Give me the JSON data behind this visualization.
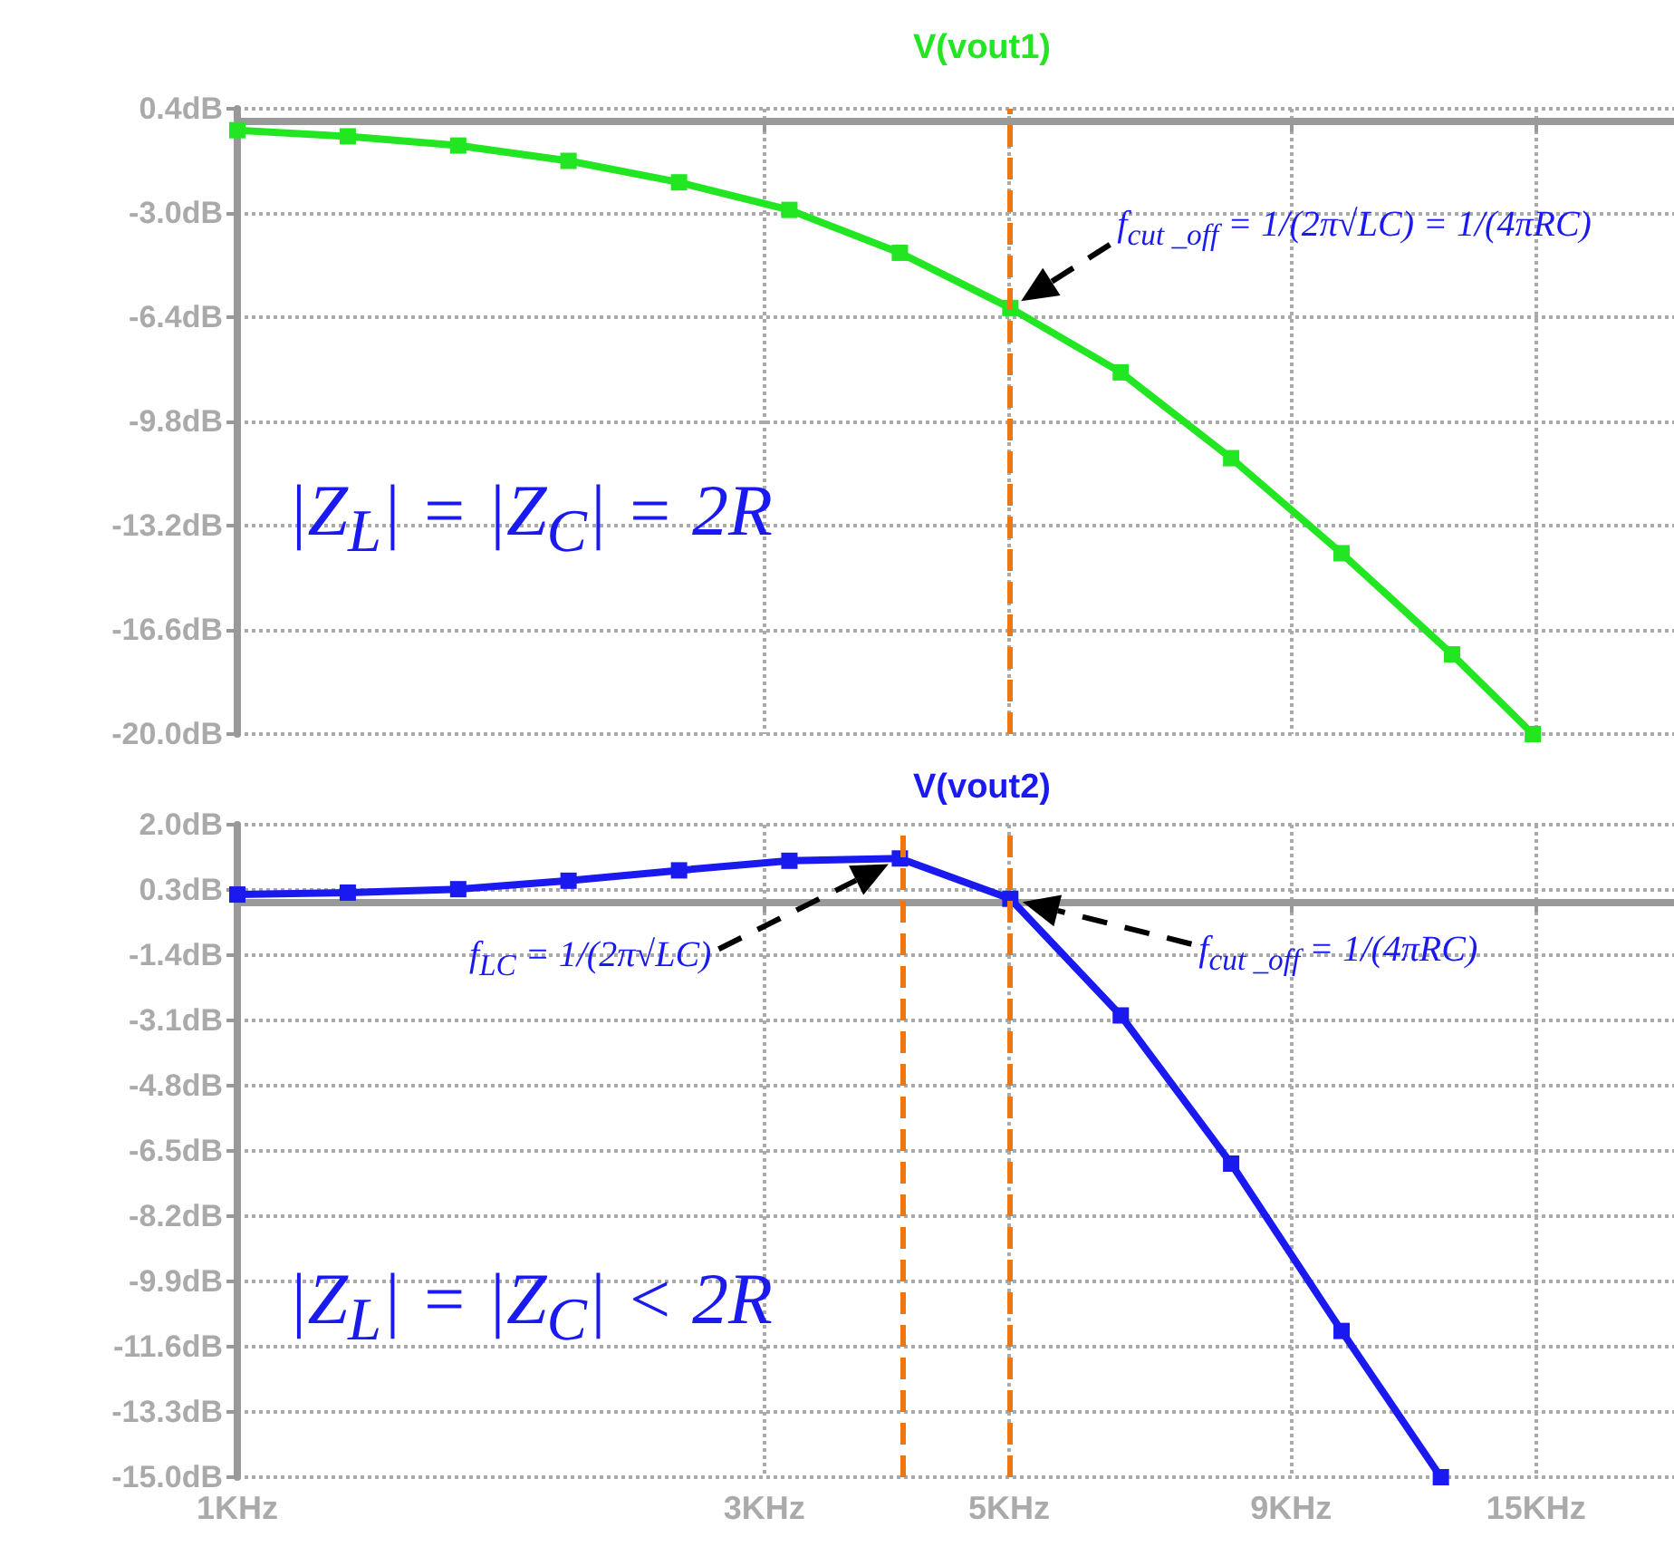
{
  "chart_data": [
    {
      "type": "line",
      "title": "V(vout1)",
      "log": "x",
      "xlim": [
        1,
        20
      ],
      "xticks": [
        1,
        3,
        5,
        9,
        15
      ],
      "tick_labels": "y",
      "ylim": [
        -20,
        0.4
      ],
      "yticks": [
        {
          "value": 0.4,
          "label": "0.4dB"
        },
        {
          "value": -3.0,
          "label": "-3.0dB"
        },
        {
          "value": -6.4,
          "label": "-6.4dB"
        },
        {
          "value": -9.8,
          "label": "-9.8dB"
        },
        {
          "value": -13.2,
          "label": "-13.2dB"
        },
        {
          "value": -16.6,
          "label": "-16.6dB"
        },
        {
          "value": -20.0,
          "label": "-20.0dB"
        }
      ],
      "grid": true,
      "marker": "square",
      "line_style": "solid",
      "series": [
        {
          "color": "#22e622",
          "x": [
            1,
            1.259,
            1.585,
            1.995,
            2.512,
            3.162,
            3.981,
            5.012,
            6.31,
            7.943,
            10,
            12.59,
            14.9
          ],
          "values": [
            -0.3,
            -0.5,
            -0.8,
            -1.3,
            -2.0,
            -2.9,
            -4.3,
            -6.1,
            -8.2,
            -11.0,
            -14.1,
            -17.4,
            -20.0
          ]
        }
      ],
      "ref_lines": [
        {
          "axis": "x",
          "value": 5,
          "color": "#ee7711",
          "line_style": "dashed"
        }
      ],
      "annotations": [
        "f$_{cut _off}$ = 1/(2π√LC) = 1/(4πRC)",
        "|Z$_{L}$| = |Z$_{C}$| = 2R"
      ]
    },
    {
      "type": "line",
      "title": "V(vout2)",
      "log": "x",
      "xlim": [
        1,
        20
      ],
      "xticks": [
        {
          "value": 1,
          "label": "1KHz"
        },
        {
          "value": 3,
          "label": "3KHz"
        },
        {
          "value": 5,
          "label": "5KHz"
        },
        {
          "value": 9,
          "label": "9KHz"
        },
        {
          "value": 15,
          "label": "15KHz"
        }
      ],
      "ylim": [
        -15,
        2.0
      ],
      "yticks": [
        {
          "value": 2.0,
          "label": "2.0dB"
        },
        {
          "value": 0.3,
          "label": "0.3dB"
        },
        {
          "value": -1.4,
          "label": "-1.4dB"
        },
        {
          "value": -3.1,
          "label": "-3.1dB"
        },
        {
          "value": -4.8,
          "label": "-4.8dB"
        },
        {
          "value": -6.5,
          "label": "-6.5dB"
        },
        {
          "value": -8.2,
          "label": "-8.2dB"
        },
        {
          "value": -9.9,
          "label": "-9.9dB"
        },
        {
          "value": -11.6,
          "label": "-11.6dB"
        },
        {
          "value": -13.3,
          "label": "-13.3dB"
        },
        {
          "value": -15.0,
          "label": "-15.0dB"
        }
      ],
      "grid": true,
      "marker": "square",
      "line_style": "solid",
      "series": [
        {
          "color": "#1a1af0",
          "x": [
            1,
            1.259,
            1.585,
            1.995,
            2.512,
            3.162,
            3.981,
            5.012,
            6.31,
            7.943,
            10,
            12.3
          ],
          "values": [
            0.18,
            0.23,
            0.32,
            0.54,
            0.81,
            1.06,
            1.12,
            0.07,
            -2.97,
            -6.83,
            -11.19,
            -15.0
          ]
        }
      ],
      "ref_lines": [
        {
          "axis": "x",
          "value": 4,
          "color": "#ee7711",
          "line_style": "dashed"
        },
        {
          "axis": "x",
          "value": 5,
          "color": "#ee7711",
          "line_style": "dashed"
        }
      ],
      "annotations": [
        "f$_{LC}$ = 1/(2π√LC)",
        "f$_{cut _off}$ = 1/(4πRC)",
        "|Z$_{L}$| = |Z$_{C}$| < 2R"
      ]
    }
  ]
}
